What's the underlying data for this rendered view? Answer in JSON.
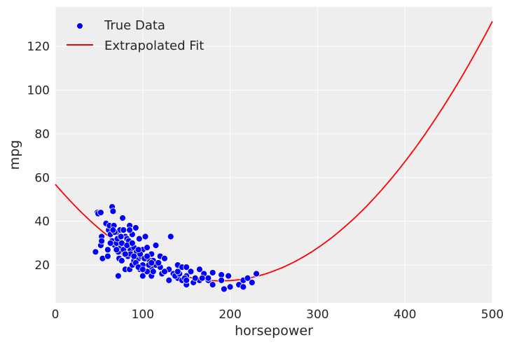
{
  "chart_data": {
    "type": "scatter",
    "xlabel": "horsepower",
    "ylabel": "mpg",
    "xlim": [
      0,
      500
    ],
    "ylim": [
      2.7,
      138
    ],
    "xticks": [
      0,
      100,
      200,
      300,
      400,
      500
    ],
    "yticks": [
      20,
      40,
      60,
      80,
      100,
      120
    ],
    "grid": true,
    "background": "#EEEEEE",
    "legend_placement": "top-left",
    "series": [
      {
        "name": "True Data",
        "kind": "scatter",
        "color": "#0000FF",
        "points": [
          [
            46,
            26
          ],
          [
            48,
            44
          ],
          [
            49,
            43.5
          ],
          [
            52,
            44
          ],
          [
            52,
            29
          ],
          [
            53,
            33
          ],
          [
            53,
            31
          ],
          [
            54,
            23
          ],
          [
            58,
            39
          ],
          [
            60,
            27
          ],
          [
            60,
            24
          ],
          [
            61,
            36
          ],
          [
            62,
            38
          ],
          [
            63,
            34
          ],
          [
            65,
            46.6
          ],
          [
            66,
            44.6
          ],
          [
            65,
            31
          ],
          [
            67,
            38
          ],
          [
            68,
            29
          ],
          [
            70,
            35
          ],
          [
            70,
            30
          ],
          [
            71,
            32
          ],
          [
            72,
            15
          ],
          [
            72,
            26
          ],
          [
            74,
            36
          ],
          [
            75,
            28
          ],
          [
            76,
            30
          ],
          [
            77,
            41.5
          ],
          [
            78,
            36
          ],
          [
            79,
            25
          ],
          [
            80,
            33
          ],
          [
            80,
            18
          ],
          [
            82,
            32
          ],
          [
            83,
            24
          ],
          [
            84,
            31
          ],
          [
            85,
            18
          ],
          [
            85,
            38
          ],
          [
            86,
            27
          ],
          [
            88,
            34
          ],
          [
            88,
            20
          ],
          [
            90,
            28
          ],
          [
            90,
            22
          ],
          [
            92,
            37
          ],
          [
            93,
            26
          ],
          [
            95,
            23
          ],
          [
            96,
            32
          ],
          [
            97,
            18
          ],
          [
            98,
            24
          ],
          [
            100,
            15
          ],
          [
            100,
            27
          ],
          [
            100,
            20
          ],
          [
            103,
            33
          ],
          [
            105,
            17
          ],
          [
            105,
            28
          ],
          [
            108,
            22
          ],
          [
            110,
            19
          ],
          [
            110,
            25
          ],
          [
            110,
            15
          ],
          [
            112,
            22
          ],
          [
            115,
            29
          ],
          [
            115,
            20
          ],
          [
            120,
            19
          ],
          [
            120,
            24
          ],
          [
            122,
            16
          ],
          [
            125,
            23
          ],
          [
            130,
            13
          ],
          [
            130,
            18
          ],
          [
            132,
            33
          ],
          [
            135,
            16
          ],
          [
            140,
            14
          ],
          [
            140,
            20
          ],
          [
            145,
            13
          ],
          [
            145,
            19
          ],
          [
            150,
            11
          ],
          [
            150,
            15
          ],
          [
            150,
            19
          ],
          [
            155,
            17
          ],
          [
            160,
            13
          ],
          [
            165,
            18
          ],
          [
            165,
            13
          ],
          [
            170,
            16
          ],
          [
            175,
            13
          ],
          [
            180,
            16.5
          ],
          [
            180,
            11
          ],
          [
            190,
            15.5
          ],
          [
            190,
            13
          ],
          [
            193,
            9
          ],
          [
            198,
            15
          ],
          [
            200,
            10
          ],
          [
            210,
            11
          ],
          [
            215,
            13
          ],
          [
            215,
            10
          ],
          [
            220,
            14
          ],
          [
            225,
            12
          ],
          [
            230,
            16
          ],
          [
            68,
            35
          ],
          [
            75,
            33
          ],
          [
            78,
            27
          ],
          [
            82,
            29
          ],
          [
            86,
            25
          ],
          [
            88,
            30
          ],
          [
            92,
            21
          ],
          [
            95,
            19
          ],
          [
            97,
            25
          ],
          [
            102,
            23
          ],
          [
            107,
            20
          ],
          [
            112,
            17
          ],
          [
            118,
            21
          ],
          [
            125,
            17
          ],
          [
            137,
            15
          ],
          [
            142,
            16
          ],
          [
            148,
            14
          ],
          [
            158,
            12
          ],
          [
            168,
            14
          ],
          [
            175,
            14
          ],
          [
            63,
            30
          ],
          [
            66,
            36
          ],
          [
            70,
            27
          ],
          [
            73,
            23
          ],
          [
            76,
            22
          ],
          [
            80,
            25
          ],
          [
            85,
            36
          ],
          [
            90,
            24
          ],
          [
            95,
            27
          ],
          [
            100,
            18
          ],
          [
            105,
            24
          ],
          [
            110,
            21
          ],
          [
            140,
            17
          ],
          [
            150,
            13
          ],
          [
            160,
            14
          ]
        ]
      },
      {
        "name": "Extrapolated Fit",
        "kind": "line",
        "color": "#FF0000",
        "quadratic_coefficients": {
          "intercept": 56.9,
          "linear": -0.466,
          "quadratic": 0.00123
        }
      }
    ]
  }
}
